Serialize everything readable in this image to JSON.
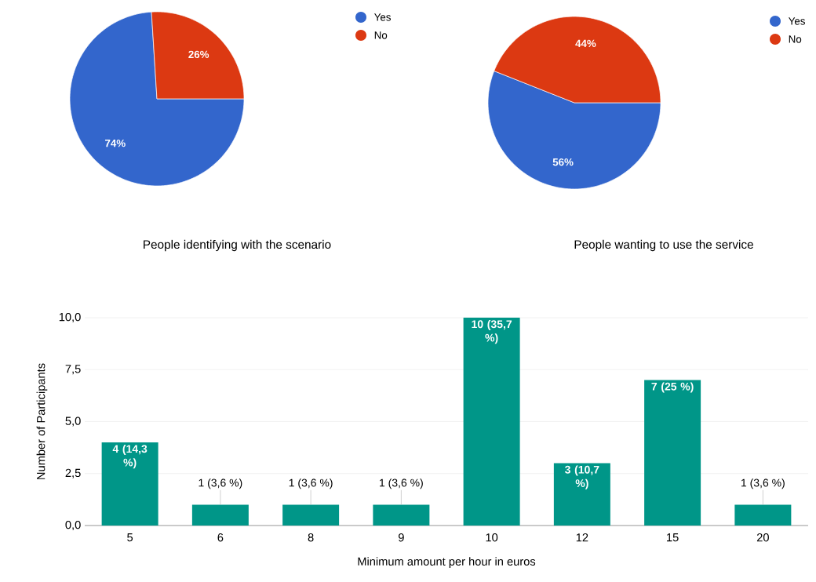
{
  "chart_data": [
    {
      "type": "pie",
      "title": "People identifying with the scenario",
      "categories": [
        "Yes",
        "No"
      ],
      "values": [
        74,
        26
      ],
      "colors": [
        "#3366cc",
        "#dc3912"
      ],
      "value_labels": [
        "74%",
        "26%"
      ],
      "legend": "top right"
    },
    {
      "type": "pie",
      "title": "People wanting to use the service",
      "categories": [
        "Yes",
        "No"
      ],
      "values": [
        56,
        44
      ],
      "colors": [
        "#3366cc",
        "#dc3912"
      ],
      "value_labels": [
        "56%",
        "44%"
      ],
      "legend": "top right"
    },
    {
      "type": "bar",
      "xlabel": "Minimum amount per hour in euros",
      "ylabel": "Number of Participants",
      "categories": [
        "5",
        "6",
        "8",
        "9",
        "10",
        "12",
        "15",
        "20"
      ],
      "values": [
        4,
        1,
        1,
        1,
        10,
        3,
        7,
        1
      ],
      "color": "#009688",
      "value_labels": [
        "4 (14,3 %)",
        "1 (3,6 %)",
        "1 (3,6 %)",
        "1 (3,6 %)",
        "10 (35,7 %)",
        "3 (10,7 %)",
        "7 (25 %)",
        "1 (3,6 %)"
      ],
      "ylim": [
        0,
        10
      ],
      "yticks": [
        {
          "value": 0,
          "label": "0,0"
        },
        {
          "value": 2.5,
          "label": "2,5"
        },
        {
          "value": 5,
          "label": "5,0"
        },
        {
          "value": 7.5,
          "label": "7,5"
        },
        {
          "value": 10,
          "label": "10,0"
        }
      ],
      "grid": "y",
      "legend": false
    }
  ]
}
